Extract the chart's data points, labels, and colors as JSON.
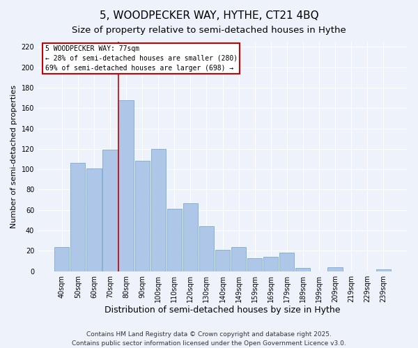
{
  "title": "5, WOODPECKER WAY, HYTHE, CT21 4BQ",
  "subtitle": "Size of property relative to semi-detached houses in Hythe",
  "xlabel": "Distribution of semi-detached houses by size in Hythe",
  "ylabel": "Number of semi-detached properties",
  "categories": [
    "40sqm",
    "50sqm",
    "60sqm",
    "70sqm",
    "80sqm",
    "90sqm",
    "100sqm",
    "110sqm",
    "120sqm",
    "130sqm",
    "140sqm",
    "149sqm",
    "159sqm",
    "169sqm",
    "179sqm",
    "189sqm",
    "199sqm",
    "209sqm",
    "219sqm",
    "229sqm",
    "239sqm"
  ],
  "values": [
    24,
    106,
    101,
    119,
    168,
    108,
    120,
    61,
    67,
    44,
    21,
    24,
    13,
    14,
    18,
    3,
    0,
    4,
    0,
    0,
    2
  ],
  "bar_color": "#aec6e8",
  "bar_edge_color": "#7aaad0",
  "highlight_bar_index": 4,
  "highlight_line_color": "#cc0000",
  "annotation_title": "5 WOODPECKER WAY: 77sqm",
  "annotation_line1": "← 28% of semi-detached houses are smaller (280)",
  "annotation_line2": "69% of semi-detached houses are larger (698) →",
  "annotation_box_color": "#ffffff",
  "annotation_box_edge_color": "#cc0000",
  "ylim": [
    0,
    225
  ],
  "yticks": [
    0,
    20,
    40,
    60,
    80,
    100,
    120,
    140,
    160,
    180,
    200,
    220
  ],
  "background_color": "#eef2fb",
  "grid_color": "#ffffff",
  "footer_line1": "Contains HM Land Registry data © Crown copyright and database right 2025.",
  "footer_line2": "Contains public sector information licensed under the Open Government Licence v3.0.",
  "title_fontsize": 11,
  "subtitle_fontsize": 9.5,
  "xlabel_fontsize": 9,
  "ylabel_fontsize": 8,
  "tick_fontsize": 7,
  "footer_fontsize": 6.5
}
